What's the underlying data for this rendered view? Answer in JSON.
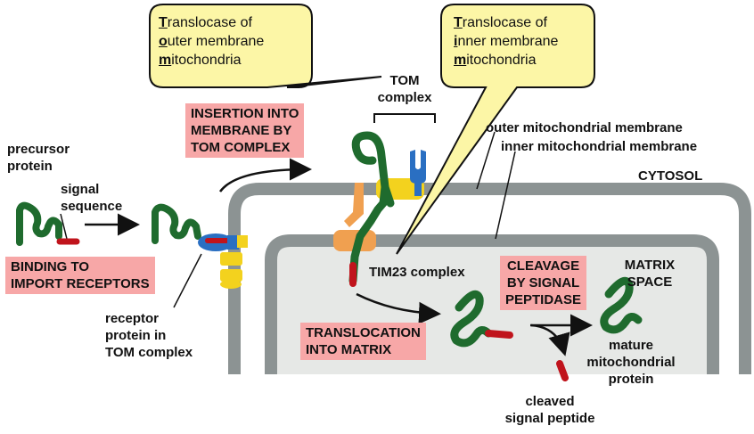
{
  "callouts": {
    "tom": {
      "line1_initial": "T",
      "line1_rest": "ranslocase of",
      "line2_initial": "o",
      "line2_rest": "uter membrane",
      "line3_initial": "m",
      "line3_rest": "itochondria"
    },
    "tim": {
      "line1_initial": "T",
      "line1_rest": "ranslocase of",
      "line2_initial": "i",
      "line2_rest": "nner membrane",
      "line3_initial": "m",
      "line3_rest": "itochondria"
    }
  },
  "labels": {
    "tom_complex": [
      "TOM",
      "complex"
    ],
    "outer_membrane": "outer mitochondrial membrane",
    "inner_membrane": "inner mitochondrial membrane",
    "cytosol": "CYTOSOL",
    "precursor_protein": [
      "precursor",
      "protein"
    ],
    "signal_sequence": [
      "signal",
      "sequence"
    ],
    "receptor_protein": [
      "receptor",
      "protein in",
      "TOM complex"
    ],
    "tim23_complex": "TIM23 complex",
    "matrix_space": [
      "MATRIX",
      "SPACE"
    ],
    "mature_protein": [
      "mature",
      "mitochondrial",
      "protein"
    ],
    "cleaved_signal": [
      "cleaved",
      "signal peptide"
    ]
  },
  "steps": {
    "binding": [
      "BINDING TO",
      "IMPORT RECEPTORS"
    ],
    "insertion": [
      "INSERTION INTO",
      "MEMBRANE BY",
      "TOM COMPLEX"
    ],
    "translocation": [
      "TRANSLOCATION",
      "INTO MATRIX"
    ],
    "cleavage": [
      "CLEAVAGE",
      "BY SIGNAL",
      "PEPTIDASE"
    ]
  },
  "colors": {
    "callout_fill": "#fcf6a6",
    "step_fill": "#f7a7a7",
    "membrane": "#8c9393",
    "matrix": "#e6e8e6",
    "protein_green": "#1f6b2e",
    "signal_red": "#c0141c",
    "receptor_blue": "#2a6fc2",
    "tom_yellow": "#f3d21e",
    "tim_orange": "#f0a050"
  }
}
